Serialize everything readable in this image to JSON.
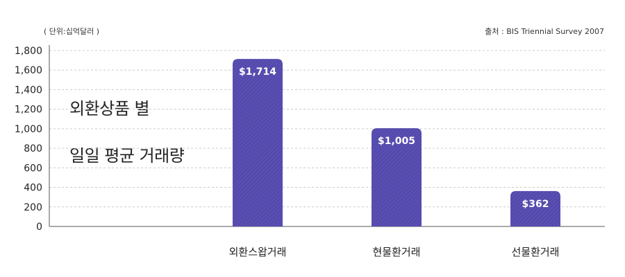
{
  "header": {
    "unit_note": "( 단위:십억달러 )",
    "source_note": "출처 : BIS Triennial Survey 2007"
  },
  "title_lines": [
    "외환상품 별",
    "일일 평균 거래량"
  ],
  "colors": {
    "bar": "#5a4fb2",
    "bar_stripe": "#4a40a0",
    "grid": "#cccccc",
    "axis": "#555555",
    "label_text": "#ffffff"
  },
  "chart_data": {
    "type": "bar",
    "title": "외환상품 별 일일 평균 거래량",
    "xlabel": "",
    "ylabel": "",
    "ylim": [
      0,
      1800
    ],
    "yticks": [
      0,
      200,
      400,
      600,
      800,
      1000,
      1200,
      1400,
      1600,
      1800
    ],
    "ytick_labels": [
      "0",
      "200",
      "400",
      "600",
      "800",
      "1,000",
      "1,200",
      "1,400",
      "1,600",
      "1,800"
    ],
    "categories": [
      "",
      "외환스왑거래",
      "현물환거래",
      "선물환거래"
    ],
    "values": [
      null,
      1714,
      1005,
      362
    ],
    "data_labels": [
      "",
      "$1,714",
      "$1,005",
      "$362"
    ],
    "grid": true
  }
}
